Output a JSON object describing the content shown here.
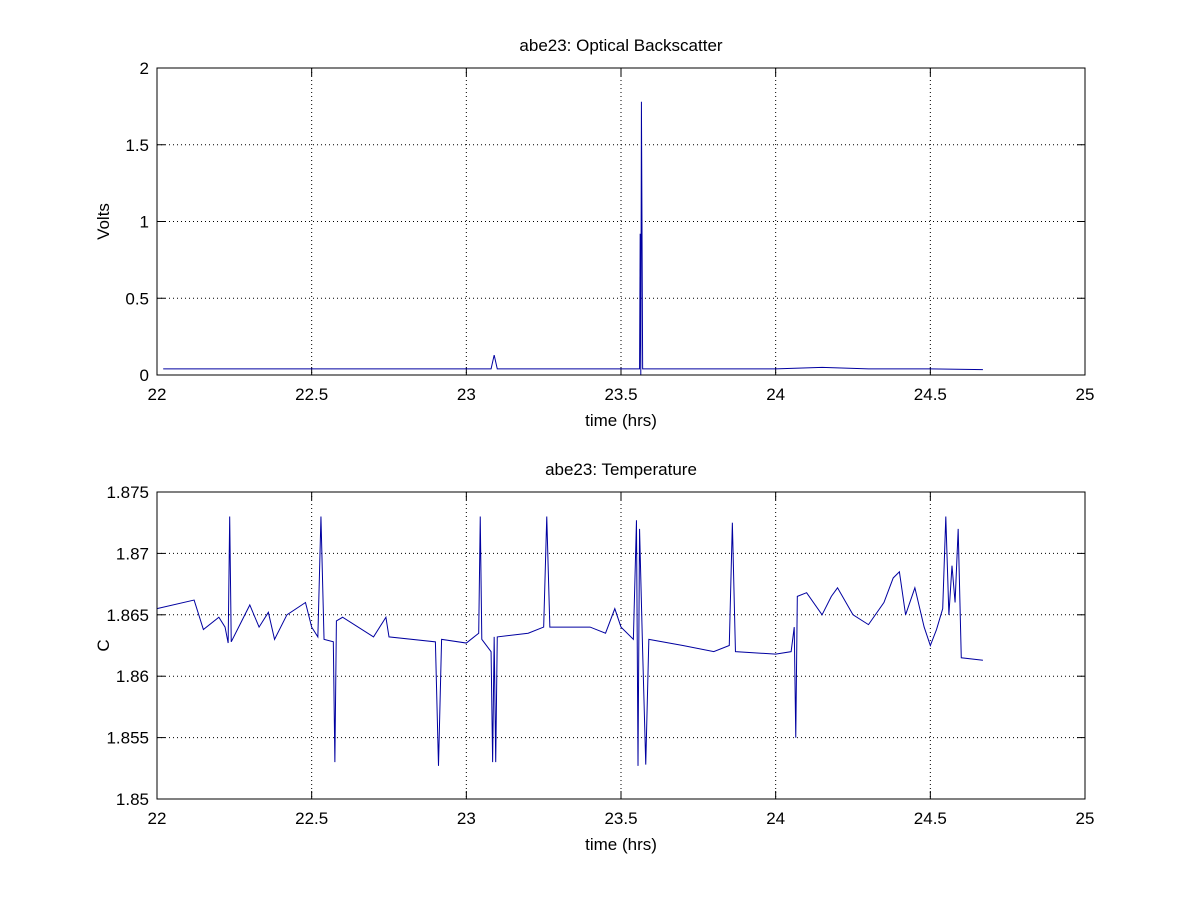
{
  "chart_data": [
    {
      "type": "line",
      "title": "abe23: Optical Backscatter",
      "xlabel": "time (hrs)",
      "ylabel": "Volts",
      "xlim": [
        22,
        25
      ],
      "xticks": [
        22,
        22.5,
        23,
        23.5,
        24,
        24.5,
        25
      ],
      "ylim": [
        0,
        2
      ],
      "yticks": [
        0,
        0.5,
        1,
        1.5,
        2
      ],
      "grid": true,
      "series": [
        {
          "name": "Optical Backscatter",
          "color": "#0000a0",
          "x": [
            22.02,
            22.3,
            22.6,
            23.0,
            23.08,
            23.09,
            23.1,
            23.3,
            23.5,
            23.56,
            23.562,
            23.564,
            23.566,
            23.57,
            23.8,
            24.0,
            24.15,
            24.3,
            24.5,
            24.67
          ],
          "values": [
            0.04,
            0.04,
            0.04,
            0.04,
            0.04,
            0.13,
            0.04,
            0.04,
            0.04,
            0.04,
            0.92,
            0,
            1.78,
            0.04,
            0.04,
            0.04,
            0.05,
            0.04,
            0.04,
            0.035
          ]
        }
      ]
    },
    {
      "type": "line",
      "title": "abe23: Temperature",
      "xlabel": "time (hrs)",
      "ylabel": "C",
      "xlim": [
        22,
        25
      ],
      "xticks": [
        22,
        22.5,
        23,
        23.5,
        24,
        24.5,
        25
      ],
      "ylim": [
        1.85,
        1.875
      ],
      "yticks": [
        1.85,
        1.855,
        1.86,
        1.865,
        1.87,
        1.875
      ],
      "grid": true,
      "series": [
        {
          "name": "Temperature",
          "color": "#0000a0",
          "x": [
            22.0,
            22.12,
            22.15,
            22.2,
            22.22,
            22.23,
            22.235,
            22.24,
            22.3,
            22.33,
            22.36,
            22.38,
            22.42,
            22.48,
            22.5,
            22.52,
            22.53,
            22.54,
            22.57,
            22.575,
            22.58,
            22.6,
            22.7,
            22.74,
            22.75,
            22.9,
            22.91,
            22.92,
            23.0,
            23.04,
            23.045,
            23.05,
            23.08,
            23.085,
            23.09,
            23.095,
            23.1,
            23.2,
            23.25,
            23.26,
            23.27,
            23.4,
            23.45,
            23.48,
            23.5,
            23.54,
            23.55,
            23.555,
            23.56,
            23.57,
            23.58,
            23.59,
            23.7,
            23.8,
            23.85,
            23.86,
            23.87,
            24.0,
            24.05,
            24.06,
            24.065,
            24.07,
            24.1,
            24.15,
            24.18,
            24.2,
            24.25,
            24.3,
            24.35,
            24.38,
            24.4,
            24.42,
            24.45,
            24.48,
            24.5,
            24.52,
            24.54,
            24.55,
            24.56,
            24.57,
            24.58,
            24.59,
            24.6,
            24.67
          ],
          "values": [
            1.8655,
            1.8662,
            1.8638,
            1.8648,
            1.864,
            1.8627,
            1.873,
            1.8628,
            1.8658,
            1.864,
            1.8652,
            1.863,
            1.865,
            1.866,
            1.864,
            1.8632,
            1.873,
            1.863,
            1.8628,
            1.853,
            1.8645,
            1.8648,
            1.8632,
            1.8648,
            1.8632,
            1.8628,
            1.8527,
            1.863,
            1.8627,
            1.8635,
            1.873,
            1.863,
            1.862,
            1.853,
            1.8632,
            1.853,
            1.8632,
            1.8635,
            1.864,
            1.873,
            1.864,
            1.864,
            1.8635,
            1.8655,
            1.864,
            1.863,
            1.8727,
            1.8527,
            1.872,
            1.862,
            1.8528,
            1.863,
            1.8625,
            1.862,
            1.8625,
            1.8725,
            1.862,
            1.8618,
            1.862,
            1.864,
            1.855,
            1.8665,
            1.8668,
            1.865,
            1.8665,
            1.8672,
            1.865,
            1.8642,
            1.866,
            1.868,
            1.8685,
            1.865,
            1.8672,
            1.864,
            1.8625,
            1.8638,
            1.8655,
            1.873,
            1.865,
            1.869,
            1.866,
            1.872,
            1.8615,
            1.8613
          ]
        }
      ]
    }
  ]
}
